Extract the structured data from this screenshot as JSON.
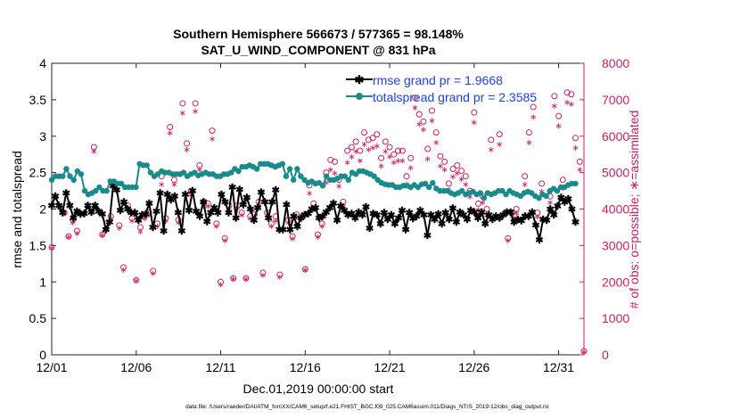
{
  "chart_data": {
    "type": "line",
    "title": [
      "Southern Hemisphere 566673 / 577365 = 98.148%",
      "SAT_U_WIND_COMPONENT @ 831 hPa"
    ],
    "xlabel": "Dec.01,2019 00:00:00 start",
    "ylabel": "rmse and totalspread",
    "y2label": "# of obs: o=possible; ∗=assimilated",
    "footnote": "data file: /Users/raeder/DAI/ATM_forcXX/CAM6_setup/f.e21.FHIST_BGC.f09_025.CAM6assim.011/Diags_NTrS_2019-12/obs_diag_output.nc",
    "x_ticks": [
      "12/01",
      "12/06",
      "12/11",
      "12/16",
      "12/21",
      "12/26",
      "12/31"
    ],
    "x_tick_days": [
      0,
      5,
      10,
      15,
      20,
      25,
      30
    ],
    "xlim": [
      0,
      31.5
    ],
    "ylim": [
      0,
      4
    ],
    "y_ticks": [
      "0",
      "0.5",
      "1",
      "1.5",
      "2",
      "2.5",
      "3",
      "3.5",
      "4"
    ],
    "y2lim": [
      0,
      8000
    ],
    "y2_ticks": [
      "0",
      "1000",
      "2000",
      "3000",
      "4000",
      "5000",
      "6000",
      "7000",
      "8000"
    ],
    "legend_position": "top-right",
    "colors": {
      "rmse": "#000000",
      "spread": "#1a8b8b",
      "obs": "#cc1f66",
      "legend_text": "#1f3fe0"
    },
    "series": [
      {
        "name": "rmse grand pr = 1.9668",
        "color": "#000000",
        "marker": "star",
        "values": [
          2.05,
          2.18,
          2.05,
          1.95,
          2.22,
          2.05,
          1.88,
          1.97,
          1.93,
          1.94,
          2.05,
          1.96,
          2.05,
          1.97,
          1.93,
          1.72,
          1.82,
          2.32,
          2.26,
          1.98,
          2.1,
          2.0,
          1.95,
          1.95,
          1.85,
          1.92,
          1.93,
          2.08,
          1.75,
          1.97,
          2.22,
          1.7,
          2.2,
          2.13,
          2.18,
          1.95,
          1.7,
          2.2,
          1.98,
          2.25,
          1.97,
          1.9,
          2.1,
          1.83,
          1.95,
          2.02,
          1.95,
          2.2,
          2.1,
          1.95,
          2.3,
          1.88,
          2.27,
          2.06,
          2.16,
          2.0,
          1.85,
          2.02,
          2.23,
          2.1,
          1.88,
          2.1,
          2.26,
          1.72,
          1.72,
          2.06,
          1.72,
          1.9,
          1.76,
          1.88,
          1.92,
          1.94,
          2.0,
          2.02,
          1.88,
          1.9,
          1.96,
          2.02,
          2.08,
          1.85,
          2.04,
          1.98,
          1.92,
          1.94,
          1.88,
          1.96,
          1.92,
          2.03,
          1.74,
          1.94,
          1.92,
          1.8,
          1.95,
          1.86,
          1.92,
          1.8,
          1.88,
          1.98,
          1.72,
          1.95,
          1.87,
          1.9,
          1.98,
          1.92,
          1.64,
          1.92,
          1.86,
          1.93,
          1.8,
          1.95,
          1.86,
          2.01,
          1.82,
          1.96,
          1.92,
          1.86,
          1.98,
          1.96,
          1.88,
          1.96,
          1.8,
          1.92,
          1.86,
          1.9,
          1.88,
          1.92,
          1.96,
          1.96,
          1.82,
          1.86,
          1.84,
          1.9,
          1.9,
          1.96,
          1.78,
          1.58,
          1.86,
          1.85,
          2.0,
          1.92,
          2.04,
          2.16,
          2.1,
          2.14,
          2.0,
          1.82
        ]
      },
      {
        "name": "totalspread grand pr = 2.3585",
        "color": "#1a8b8b",
        "marker": "circle",
        "values": [
          2.4,
          2.45,
          2.45,
          2.45,
          2.55,
          2.45,
          2.4,
          2.52,
          2.48,
          2.25,
          2.2,
          2.22,
          2.25,
          2.3,
          2.25,
          2.25,
          2.38,
          2.38,
          2.35,
          2.35,
          2.3,
          2.3,
          2.3,
          2.3,
          2.62,
          2.6,
          2.6,
          2.5,
          2.45,
          2.48,
          2.52,
          2.5,
          2.5,
          2.48,
          2.48,
          2.48,
          2.5,
          2.45,
          2.48,
          2.5,
          2.46,
          2.48,
          2.5,
          2.48,
          2.48,
          2.45,
          2.45,
          2.48,
          2.48,
          2.5,
          2.55,
          2.52,
          2.58,
          2.58,
          2.6,
          2.58,
          2.55,
          2.62,
          2.62,
          2.62,
          2.6,
          2.58,
          2.6,
          2.62,
          2.45,
          2.55,
          2.4,
          2.55,
          2.45,
          2.4,
          2.36,
          2.38,
          2.35,
          2.36,
          2.32,
          2.45,
          2.4,
          2.4,
          2.42,
          2.45,
          2.45,
          2.4,
          2.5,
          2.48,
          2.52,
          2.52,
          2.5,
          2.48,
          2.45,
          2.4,
          2.36,
          2.34,
          2.33,
          2.33,
          2.3,
          2.3,
          2.32,
          2.32,
          2.3,
          2.33,
          2.3,
          2.34,
          2.35,
          2.3,
          2.36,
          2.28,
          2.25,
          2.25,
          2.25,
          2.22,
          2.2,
          2.22,
          2.25,
          2.2,
          2.22,
          2.24,
          2.2,
          2.22,
          2.15,
          2.22,
          2.2,
          2.22,
          2.25,
          2.25,
          2.2,
          2.25,
          2.22,
          2.2,
          2.18,
          2.22,
          2.24,
          2.22,
          2.18,
          2.15,
          2.2,
          2.18,
          2.25,
          2.28,
          2.25,
          2.3,
          2.3,
          2.33,
          2.35,
          2.35
        ]
      }
    ],
    "obs_possible": [
      [
        0.0,
        2950
      ],
      [
        0.5,
        4050
      ],
      [
        0.75,
        3900
      ],
      [
        1.0,
        3250
      ],
      [
        1.25,
        3700
      ],
      [
        1.5,
        3400
      ],
      [
        2.5,
        5700
      ],
      [
        3.0,
        3300
      ],
      [
        3.25,
        3600
      ],
      [
        3.5,
        3800
      ],
      [
        4.0,
        3550
      ],
      [
        4.25,
        2400
      ],
      [
        4.5,
        4100
      ],
      [
        4.75,
        3750
      ],
      [
        5.0,
        2050
      ],
      [
        5.25,
        3500
      ],
      [
        5.5,
        3800
      ],
      [
        5.75,
        3900
      ],
      [
        6.0,
        2300
      ],
      [
        6.25,
        3600
      ],
      [
        6.5,
        4900
      ],
      [
        6.75,
        3750
      ],
      [
        7.0,
        6250
      ],
      [
        7.25,
        4800
      ],
      [
        7.5,
        3700
      ],
      [
        7.75,
        6900
      ],
      [
        8.0,
        5800
      ],
      [
        8.25,
        4500
      ],
      [
        8.5,
        6900
      ],
      [
        8.75,
        5200
      ],
      [
        9.0,
        4200
      ],
      [
        9.25,
        4150
      ],
      [
        9.5,
        6150
      ],
      [
        9.75,
        3600
      ],
      [
        10.0,
        2000
      ],
      [
        10.25,
        3200
      ],
      [
        10.5,
        4100
      ],
      [
        10.75,
        2100
      ],
      [
        11.0,
        4100
      ],
      [
        11.25,
        3900
      ],
      [
        11.5,
        2100
      ],
      [
        11.75,
        3800
      ],
      [
        12.0,
        3850
      ],
      [
        12.25,
        4200
      ],
      [
        12.5,
        2250
      ],
      [
        12.75,
        3900
      ],
      [
        13.0,
        3600
      ],
      [
        13.25,
        3800
      ],
      [
        13.5,
        2200
      ],
      [
        14.0,
        3700
      ],
      [
        14.25,
        3250
      ],
      [
        14.5,
        3850
      ],
      [
        15.0,
        2350
      ],
      [
        15.25,
        4650
      ],
      [
        15.5,
        4150
      ],
      [
        15.75,
        3300
      ],
      [
        16.0,
        3600
      ],
      [
        16.25,
        5000
      ],
      [
        16.5,
        5350
      ],
      [
        16.75,
        5300
      ],
      [
        17.0,
        4800
      ],
      [
        17.25,
        4200
      ],
      [
        17.5,
        5600
      ],
      [
        17.75,
        5700
      ],
      [
        18.0,
        5850
      ],
      [
        18.25,
        5600
      ],
      [
        18.5,
        6100
      ],
      [
        18.75,
        5900
      ],
      [
        19.0,
        5950
      ],
      [
        19.25,
        6050
      ],
      [
        19.5,
        5400
      ],
      [
        19.75,
        5850
      ],
      [
        20.0,
        5700
      ],
      [
        20.25,
        5500
      ],
      [
        20.5,
        5600
      ],
      [
        20.75,
        5600
      ],
      [
        21.0,
        4900
      ],
      [
        21.25,
        5400
      ],
      [
        21.5,
        7050
      ],
      [
        21.75,
        6600
      ],
      [
        22.0,
        6400
      ],
      [
        22.25,
        5650
      ],
      [
        22.5,
        6700
      ],
      [
        22.75,
        6100
      ],
      [
        23.0,
        5450
      ],
      [
        23.25,
        5300
      ],
      [
        23.5,
        4700
      ],
      [
        23.75,
        5100
      ],
      [
        24.0,
        5200
      ],
      [
        24.25,
        5050
      ],
      [
        24.5,
        4900
      ],
      [
        24.75,
        4500
      ],
      [
        25.0,
        6650
      ],
      [
        25.25,
        4150
      ],
      [
        25.5,
        4350
      ],
      [
        25.75,
        4000
      ],
      [
        26.0,
        5900
      ],
      [
        26.5,
        6050
      ],
      [
        27.0,
        3200
      ],
      [
        27.25,
        3900
      ],
      [
        27.5,
        4000
      ],
      [
        28.0,
        4900
      ],
      [
        28.25,
        6100
      ],
      [
        28.5,
        6800
      ],
      [
        28.75,
        3900
      ],
      [
        29.0,
        4700
      ],
      [
        29.5,
        4350
      ],
      [
        29.75,
        7100
      ],
      [
        30.0,
        6550
      ],
      [
        30.25,
        4800
      ],
      [
        30.5,
        7200
      ],
      [
        30.75,
        7150
      ],
      [
        31.0,
        5950
      ],
      [
        31.25,
        5300
      ],
      [
        31.5,
        100
      ]
    ],
    "obs_assimilated": [
      [
        0.0,
        2950
      ],
      [
        0.5,
        4050
      ],
      [
        0.75,
        3900
      ],
      [
        1.0,
        3250
      ],
      [
        1.25,
        3650
      ],
      [
        1.5,
        3350
      ],
      [
        2.5,
        5600
      ],
      [
        3.0,
        3300
      ],
      [
        3.25,
        3500
      ],
      [
        3.5,
        3750
      ],
      [
        4.0,
        3500
      ],
      [
        4.25,
        2350
      ],
      [
        4.5,
        4050
      ],
      [
        4.75,
        3700
      ],
      [
        5.0,
        2050
      ],
      [
        5.25,
        3400
      ],
      [
        5.5,
        3750
      ],
      [
        5.75,
        3850
      ],
      [
        6.0,
        2250
      ],
      [
        6.25,
        3550
      ],
      [
        6.5,
        4700
      ],
      [
        6.75,
        3700
      ],
      [
        7.0,
        6100
      ],
      [
        7.25,
        4700
      ],
      [
        7.5,
        3650
      ],
      [
        7.75,
        6650
      ],
      [
        8.0,
        5650
      ],
      [
        8.25,
        4400
      ],
      [
        8.5,
        6700
      ],
      [
        8.75,
        5100
      ],
      [
        9.0,
        4100
      ],
      [
        9.25,
        4100
      ],
      [
        9.5,
        5950
      ],
      [
        9.75,
        3550
      ],
      [
        10.0,
        1950
      ],
      [
        10.25,
        3150
      ],
      [
        10.5,
        4000
      ],
      [
        10.75,
        2100
      ],
      [
        11.0,
        4050
      ],
      [
        11.25,
        3850
      ],
      [
        11.5,
        2100
      ],
      [
        11.75,
        3750
      ],
      [
        12.0,
        3800
      ],
      [
        12.25,
        4100
      ],
      [
        12.5,
        2200
      ],
      [
        12.75,
        3850
      ],
      [
        13.0,
        3550
      ],
      [
        13.25,
        3700
      ],
      [
        13.5,
        2150
      ],
      [
        14.0,
        3650
      ],
      [
        14.25,
        3200
      ],
      [
        14.5,
        3800
      ],
      [
        15.0,
        2350
      ],
      [
        15.25,
        4450
      ],
      [
        15.5,
        4000
      ],
      [
        15.75,
        3250
      ],
      [
        16.0,
        3550
      ],
      [
        16.25,
        4750
      ],
      [
        16.5,
        5100
      ],
      [
        16.75,
        5000
      ],
      [
        17.0,
        4650
      ],
      [
        17.25,
        4100
      ],
      [
        17.5,
        5300
      ],
      [
        17.75,
        5450
      ],
      [
        18.0,
        5600
      ],
      [
        18.25,
        5350
      ],
      [
        18.5,
        5800
      ],
      [
        18.75,
        5650
      ],
      [
        19.0,
        5700
      ],
      [
        19.25,
        5750
      ],
      [
        19.5,
        5200
      ],
      [
        19.75,
        5600
      ],
      [
        20.0,
        5450
      ],
      [
        20.25,
        5300
      ],
      [
        20.5,
        5350
      ],
      [
        20.75,
        5350
      ],
      [
        21.0,
        4700
      ],
      [
        21.25,
        5150
      ],
      [
        21.5,
        6800
      ],
      [
        21.75,
        6350
      ],
      [
        22.0,
        6200
      ],
      [
        22.25,
        5400
      ],
      [
        22.5,
        6450
      ],
      [
        22.75,
        5850
      ],
      [
        23.0,
        5200
      ],
      [
        23.25,
        5100
      ],
      [
        23.5,
        4550
      ],
      [
        23.75,
        4900
      ],
      [
        24.0,
        5000
      ],
      [
        24.25,
        4850
      ],
      [
        24.5,
        4700
      ],
      [
        24.75,
        4350
      ],
      [
        25.0,
        6400
      ],
      [
        25.25,
        4000
      ],
      [
        25.5,
        4200
      ],
      [
        25.75,
        3850
      ],
      [
        26.0,
        5650
      ],
      [
        26.5,
        5800
      ],
      [
        27.0,
        3150
      ],
      [
        27.25,
        3800
      ],
      [
        27.5,
        3900
      ],
      [
        28.0,
        4700
      ],
      [
        28.25,
        5850
      ],
      [
        28.5,
        6550
      ],
      [
        28.75,
        3800
      ],
      [
        29.0,
        4500
      ],
      [
        29.5,
        4200
      ],
      [
        29.75,
        6850
      ],
      [
        30.0,
        6300
      ],
      [
        30.25,
        4600
      ],
      [
        30.5,
        6950
      ],
      [
        30.75,
        6900
      ],
      [
        31.0,
        5700
      ],
      [
        31.25,
        5100
      ],
      [
        31.5,
        100
      ]
    ]
  }
}
